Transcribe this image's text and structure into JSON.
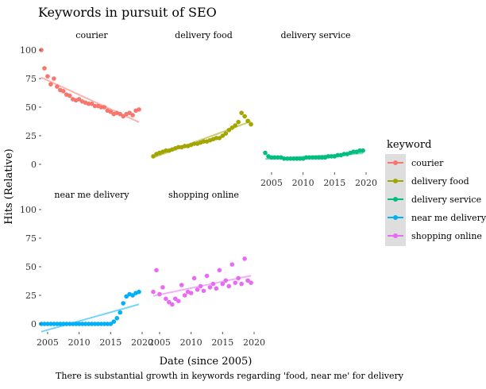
{
  "chart_data": {
    "type": "scatter",
    "title": "Keywords in pursuit of SEO",
    "xlabel": "Date (since 2005)",
    "ylabel": "Hits (Relative)",
    "caption": "There is substantial growth in keywords regarding 'food, near me' for delivery",
    "xlim": [
      2004,
      2020
    ],
    "ylim": [
      0,
      100
    ],
    "x_ticks": [
      2005,
      2010,
      2015,
      2020
    ],
    "y_ticks": [
      0,
      25,
      50,
      75,
      100
    ],
    "grid": false,
    "trend_lines": true,
    "legend": {
      "title": "keyword",
      "position": "right"
    },
    "facets": [
      {
        "name": "courier",
        "color": "#F8766D",
        "x": [
          2004.0,
          2004.5,
          2005.0,
          2005.5,
          2006.0,
          2006.5,
          2007.0,
          2007.5,
          2008.0,
          2008.5,
          2009.0,
          2009.5,
          2010.0,
          2010.5,
          2011.0,
          2011.5,
          2012.0,
          2012.5,
          2013.0,
          2013.5,
          2014.0,
          2014.5,
          2015.0,
          2015.5,
          2016.0,
          2016.5,
          2017.0,
          2017.5,
          2018.0,
          2018.5,
          2019.0,
          2019.5
        ],
        "y": [
          100,
          84,
          77,
          70,
          75,
          68,
          65,
          64,
          61,
          60,
          57,
          56,
          57,
          55,
          54,
          53,
          53,
          51,
          51,
          50,
          50,
          47,
          46,
          44,
          45,
          44,
          42,
          44,
          45,
          43,
          47,
          48
        ]
      },
      {
        "name": "delivery food",
        "color": "#A3A500",
        "x": [
          2004.0,
          2004.5,
          2005.0,
          2005.5,
          2006.0,
          2006.5,
          2007.0,
          2007.5,
          2008.0,
          2008.5,
          2009.0,
          2009.5,
          2010.0,
          2010.5,
          2011.0,
          2011.5,
          2012.0,
          2012.5,
          2013.0,
          2013.5,
          2014.0,
          2014.5,
          2015.0,
          2015.5,
          2016.0,
          2016.5,
          2017.0,
          2017.5,
          2018.0,
          2018.5,
          2019.0,
          2019.5
        ],
        "y": [
          7,
          9,
          10,
          11,
          12,
          12,
          13,
          14,
          15,
          15,
          16,
          16,
          17,
          18,
          18,
          19,
          20,
          20,
          21,
          22,
          23,
          23,
          25,
          27,
          30,
          32,
          34,
          37,
          45,
          42,
          38,
          35
        ]
      },
      {
        "name": "delivery service",
        "color": "#00BF7D",
        "x": [
          2004.0,
          2004.5,
          2005.0,
          2005.5,
          2006.0,
          2006.5,
          2007.0,
          2007.5,
          2008.0,
          2008.5,
          2009.0,
          2009.5,
          2010.0,
          2010.5,
          2011.0,
          2011.5,
          2012.0,
          2012.5,
          2013.0,
          2013.5,
          2014.0,
          2014.5,
          2015.0,
          2015.5,
          2016.0,
          2016.5,
          2017.0,
          2017.5,
          2018.0,
          2018.5,
          2019.0,
          2019.5
        ],
        "y": [
          10,
          7,
          6,
          6,
          6,
          6,
          5,
          5,
          5,
          5,
          5,
          5,
          5,
          6,
          6,
          6,
          6,
          6,
          6,
          6,
          7,
          7,
          7,
          8,
          8,
          9,
          9,
          10,
          11,
          11,
          12,
          12
        ]
      },
      {
        "name": "near me delivery",
        "color": "#00B0F6",
        "x": [
          2004.0,
          2004.5,
          2005.0,
          2005.5,
          2006.0,
          2006.5,
          2007.0,
          2007.5,
          2008.0,
          2008.5,
          2009.0,
          2009.5,
          2010.0,
          2010.5,
          2011.0,
          2011.5,
          2012.0,
          2012.5,
          2013.0,
          2013.5,
          2014.0,
          2014.5,
          2015.0,
          2015.5,
          2016.0,
          2016.5,
          2017.0,
          2017.5,
          2018.0,
          2018.5,
          2019.0,
          2019.5
        ],
        "y": [
          0,
          0,
          0,
          0,
          0,
          0,
          0,
          0,
          0,
          0,
          0,
          0,
          0,
          0,
          0,
          0,
          0,
          0,
          0,
          0,
          0,
          0,
          0,
          2,
          5,
          10,
          18,
          24,
          26,
          25,
          27,
          28
        ]
      },
      {
        "name": "shopping online",
        "color": "#E76BF3",
        "x": [
          2004.0,
          2004.5,
          2005.0,
          2005.5,
          2006.0,
          2006.5,
          2007.0,
          2007.5,
          2008.0,
          2008.5,
          2009.0,
          2009.5,
          2010.0,
          2010.5,
          2011.0,
          2011.5,
          2012.0,
          2012.5,
          2013.0,
          2013.5,
          2014.0,
          2014.5,
          2015.0,
          2015.5,
          2016.0,
          2016.5,
          2017.0,
          2017.5,
          2018.0,
          2018.5,
          2019.0,
          2019.5
        ],
        "y": [
          28,
          47,
          26,
          32,
          22,
          19,
          17,
          22,
          20,
          34,
          25,
          28,
          27,
          40,
          30,
          33,
          29,
          42,
          32,
          35,
          31,
          47,
          35,
          38,
          33,
          52,
          36,
          40,
          35,
          57,
          38,
          36
        ]
      }
    ]
  }
}
